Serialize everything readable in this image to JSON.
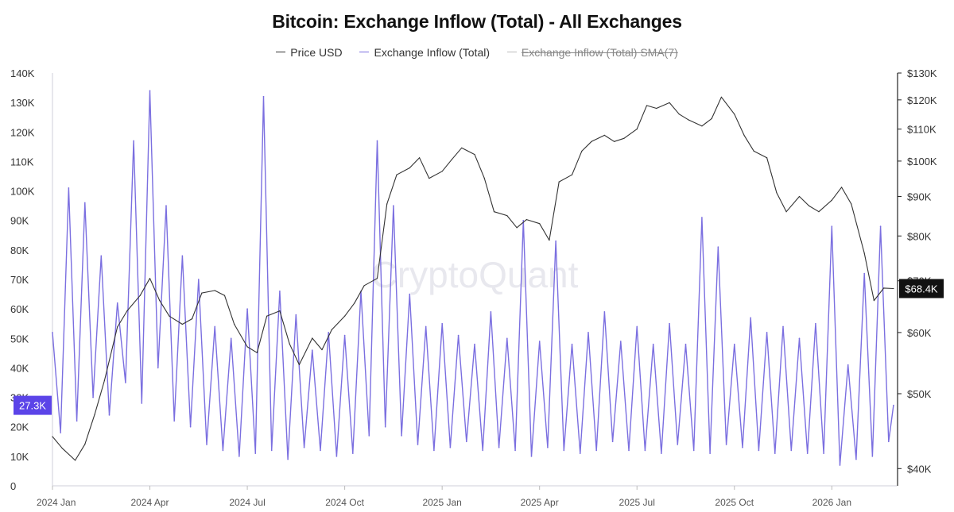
{
  "chart_data": {
    "type": "line",
    "title": "Bitcoin: Exchange Inflow (Total) - All Exchanges",
    "watermark": "CryptoQuant",
    "legend": [
      {
        "name": "Price USD",
        "color": "#333333",
        "enabled": true
      },
      {
        "name": "Exchange Inflow (Total)",
        "color": "#7b6fe0",
        "enabled": true
      },
      {
        "name": "Exchange Inflow (Total) SMA(7)",
        "color": "#aaaaaa",
        "enabled": false
      }
    ],
    "x_axis": {
      "start_date": "2024-01-01",
      "end_date": "2026-02-28",
      "ticks": [
        "2024 Jan",
        "2024 Apr",
        "2024 Jul",
        "2024 Oct",
        "2025 Jan",
        "2025 Apr",
        "2025 Jul",
        "2025 Oct",
        "2026 Jan"
      ],
      "tick_month_index": [
        0,
        3,
        6,
        9,
        12,
        15,
        18,
        21,
        24
      ]
    },
    "y_left": {
      "label": "Exchange Inflow (Total)",
      "min": 0,
      "max": 140000,
      "ticks": [
        "0",
        "10K",
        "20K",
        "30K",
        "40K",
        "50K",
        "60K",
        "70K",
        "80K",
        "90K",
        "100K",
        "110K",
        "120K",
        "130K",
        "140K"
      ],
      "tick_values": [
        0,
        10000,
        20000,
        30000,
        40000,
        50000,
        60000,
        70000,
        80000,
        90000,
        100000,
        110000,
        120000,
        130000,
        140000
      ]
    },
    "y_right": {
      "label": "Price USD",
      "scale": "log",
      "min": 38000,
      "max": 130000,
      "ticks": [
        "$40K",
        "$50K",
        "$60K",
        "$70K",
        "$80K",
        "$90K",
        "$100K",
        "$110K",
        "$120K",
        "$130K"
      ],
      "tick_values": [
        40000,
        50000,
        60000,
        70000,
        80000,
        90000,
        100000,
        110000,
        120000,
        130000
      ]
    },
    "current_values": {
      "inflow_label": "27.3K",
      "inflow": 27300,
      "inflow_color": "#5b44e8",
      "price_label": "$68.4K",
      "price": 68400,
      "price_color": "#111111"
    },
    "series": [
      {
        "name": "Price USD",
        "color": "#333333",
        "month_index": [
          0,
          0.3,
          0.7,
          1.0,
          1.3,
          1.6,
          2.0,
          2.3,
          2.7,
          3.0,
          3.3,
          3.6,
          4.0,
          4.3,
          4.6,
          5.0,
          5.3,
          5.6,
          6.0,
          6.3,
          6.6,
          7.0,
          7.3,
          7.6,
          8.0,
          8.3,
          8.6,
          9.0,
          9.3,
          9.6,
          10.0,
          10.3,
          10.6,
          11.0,
          11.3,
          11.6,
          12.0,
          12.3,
          12.6,
          13.0,
          13.3,
          13.6,
          14.0,
          14.3,
          14.6,
          15.0,
          15.3,
          15.6,
          16.0,
          16.3,
          16.6,
          17.0,
          17.3,
          17.6,
          18.0,
          18.3,
          18.6,
          19.0,
          19.3,
          19.6,
          20.0,
          20.3,
          20.6,
          21.0,
          21.3,
          21.6,
          22.0,
          22.3,
          22.6,
          23.0,
          23.3,
          23.6,
          24.0,
          24.3,
          24.6,
          25.0,
          25.3,
          25.6,
          25.9
        ],
        "values": [
          44000,
          42500,
          41000,
          43000,
          47000,
          52000,
          61000,
          64000,
          67000,
          70500,
          66000,
          63000,
          61500,
          62500,
          67500,
          68000,
          67000,
          61500,
          57500,
          56500,
          63000,
          64000,
          58000,
          54500,
          59000,
          57000,
          60500,
          63000,
          65500,
          69000,
          70500,
          88000,
          96000,
          98000,
          101000,
          95000,
          97000,
          100500,
          104000,
          102000,
          95000,
          86000,
          85000,
          82000,
          84000,
          83000,
          79000,
          94000,
          96000,
          103000,
          106000,
          108000,
          106000,
          107000,
          110000,
          118000,
          117000,
          119000,
          115000,
          113000,
          111000,
          113500,
          121000,
          115000,
          108000,
          103000,
          101000,
          91000,
          86000,
          90000,
          87500,
          86000,
          89000,
          92500,
          88000,
          76000,
          66000,
          68500,
          68400
        ]
      },
      {
        "name": "Exchange Inflow (Total)",
        "color": "#7b6fe0",
        "month_index": [
          0,
          0.25,
          0.5,
          0.75,
          1.0,
          1.25,
          1.5,
          1.75,
          2.0,
          2.25,
          2.5,
          2.75,
          3.0,
          3.25,
          3.5,
          3.75,
          4.0,
          4.25,
          4.5,
          4.75,
          5.0,
          5.25,
          5.5,
          5.75,
          6.0,
          6.25,
          6.5,
          6.75,
          7.0,
          7.25,
          7.5,
          7.75,
          8.0,
          8.25,
          8.5,
          8.75,
          9.0,
          9.25,
          9.5,
          9.75,
          10.0,
          10.25,
          10.5,
          10.75,
          11.0,
          11.25,
          11.5,
          11.75,
          12.0,
          12.25,
          12.5,
          12.75,
          13.0,
          13.25,
          13.5,
          13.75,
          14.0,
          14.25,
          14.5,
          14.75,
          15.0,
          15.25,
          15.5,
          15.75,
          16.0,
          16.25,
          16.5,
          16.75,
          17.0,
          17.25,
          17.5,
          17.75,
          18.0,
          18.25,
          18.5,
          18.75,
          19.0,
          19.25,
          19.5,
          19.75,
          20.0,
          20.25,
          20.5,
          20.75,
          21.0,
          21.25,
          21.5,
          21.75,
          22.0,
          22.25,
          22.5,
          22.75,
          23.0,
          23.25,
          23.5,
          23.75,
          24.0,
          24.25,
          24.5,
          24.75,
          25.0,
          25.25,
          25.5,
          25.75,
          25.9
        ],
        "values": [
          52000,
          18000,
          101000,
          22000,
          96000,
          30000,
          78000,
          24000,
          62000,
          35000,
          117000,
          28000,
          134000,
          40000,
          95000,
          22000,
          78000,
          20000,
          70000,
          14000,
          54000,
          12000,
          50000,
          10000,
          60000,
          11000,
          132000,
          12000,
          66000,
          9000,
          58000,
          13000,
          46000,
          12000,
          52000,
          10000,
          51000,
          11000,
          66000,
          17000,
          117000,
          20000,
          95000,
          17000,
          65000,
          14000,
          54000,
          12000,
          55000,
          13000,
          51000,
          15000,
          48000,
          12000,
          59000,
          13000,
          50000,
          12000,
          90000,
          10000,
          49000,
          13000,
          83000,
          12000,
          48000,
          11000,
          52000,
          12000,
          59000,
          15000,
          49000,
          12000,
          54000,
          12000,
          48000,
          11000,
          55000,
          14000,
          48000,
          12000,
          91000,
          11000,
          81000,
          14000,
          48000,
          13000,
          57000,
          12000,
          52000,
          11000,
          54000,
          12000,
          50000,
          11000,
          55000,
          11000,
          88000,
          7000,
          41000,
          9000,
          72000,
          10000,
          88000,
          15000,
          27300
        ]
      }
    ]
  }
}
